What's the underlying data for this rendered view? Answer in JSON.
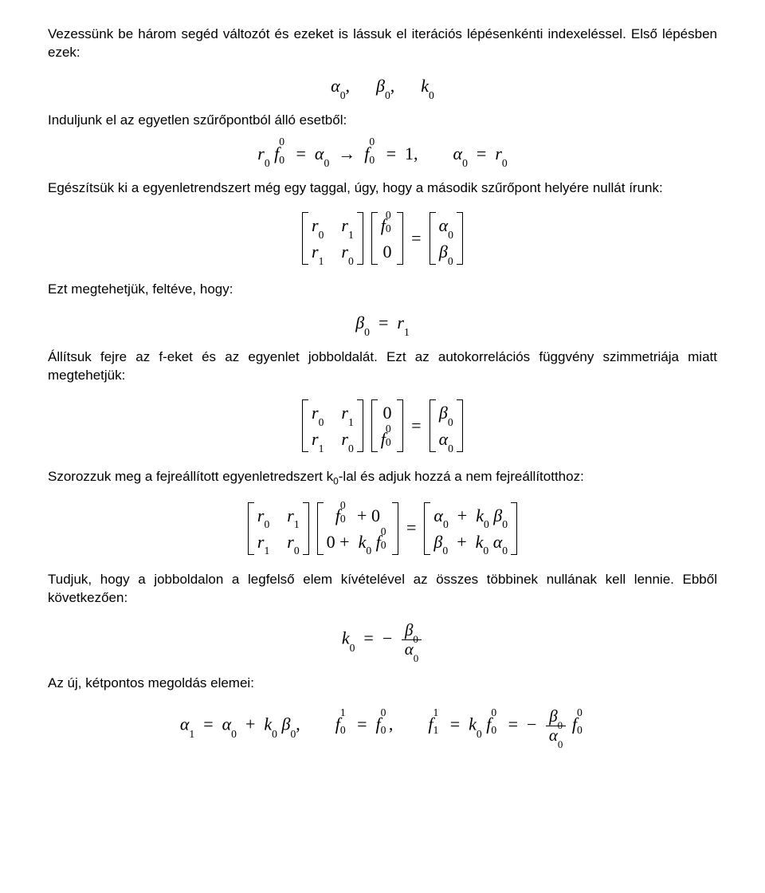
{
  "para1": "Vezessünk be három segéd változót és ezeket is lássuk el iterációs lépésenkénti indexeléssel. Első lépésben ezek:",
  "eq1": {
    "alpha": "α",
    "beta": "β",
    "k": "k",
    "idx": "0"
  },
  "para2": "Induljunk el az egyetlen szűrőpontból álló esetből:",
  "eq2": {
    "r": "r",
    "f": "f",
    "alpha": "α",
    "zero": "0",
    "one": "1",
    "arrow": "→",
    "eq": "=",
    "comma": ","
  },
  "para3": "Egészítsük ki a egyenletrendszert még egy taggal, úgy, hogy a második szűrőpont helyére nullát írunk:",
  "eq3": {
    "r": "r",
    "f": "f",
    "alpha": "α",
    "beta": "β",
    "zero": "0",
    "one": "1",
    "eq": "="
  },
  "para4": "Ezt megtehetjük, feltéve, hogy:",
  "eq4": {
    "beta": "β",
    "r": "r",
    "zero": "0",
    "one": "1",
    "eq": "="
  },
  "para5": "Állítsuk fejre az f-eket és az egyenlet jobboldalát. Ezt az autokorrelációs függvény szimmetriája miatt megtehetjük:",
  "eq5": {
    "r": "r",
    "f": "f",
    "alpha": "α",
    "beta": "β",
    "zero": "0",
    "one": "1",
    "eq": "="
  },
  "para6": "Szorozzuk meg a fejreállított egyenletredszert k",
  "para6sub": "0",
  "para6b": "-lal és adjuk hozzá a nem fejreállítotthoz:",
  "eq6": {
    "r": "r",
    "f": "f",
    "alpha": "α",
    "beta": "β",
    "k": "k",
    "zero": "0",
    "one": "1",
    "eq": "=",
    "plus": "+"
  },
  "para7": "Tudjuk, hogy a jobboldalon a legfelső elem kívételével az összes többinek nullának kell lennie. Ebből következően:",
  "eq7": {
    "k": "k",
    "beta": "β",
    "alpha": "α",
    "zero": "0",
    "eq": "="
  },
  "para8": "Az új, kétpontos megoldás elemei:",
  "eq8": {
    "alpha": "α",
    "beta": "β",
    "k": "k",
    "f": "f",
    "zero": "0",
    "one": "1",
    "eq": "=",
    "plus": "+",
    "comma": ",",
    "minus": "−"
  },
  "style": {
    "body_font": "Arial",
    "body_size_pt": 13,
    "math_font": "Cambria Math",
    "math_size_pt": 16,
    "text_color": "#000000",
    "background_color": "#ffffff"
  }
}
